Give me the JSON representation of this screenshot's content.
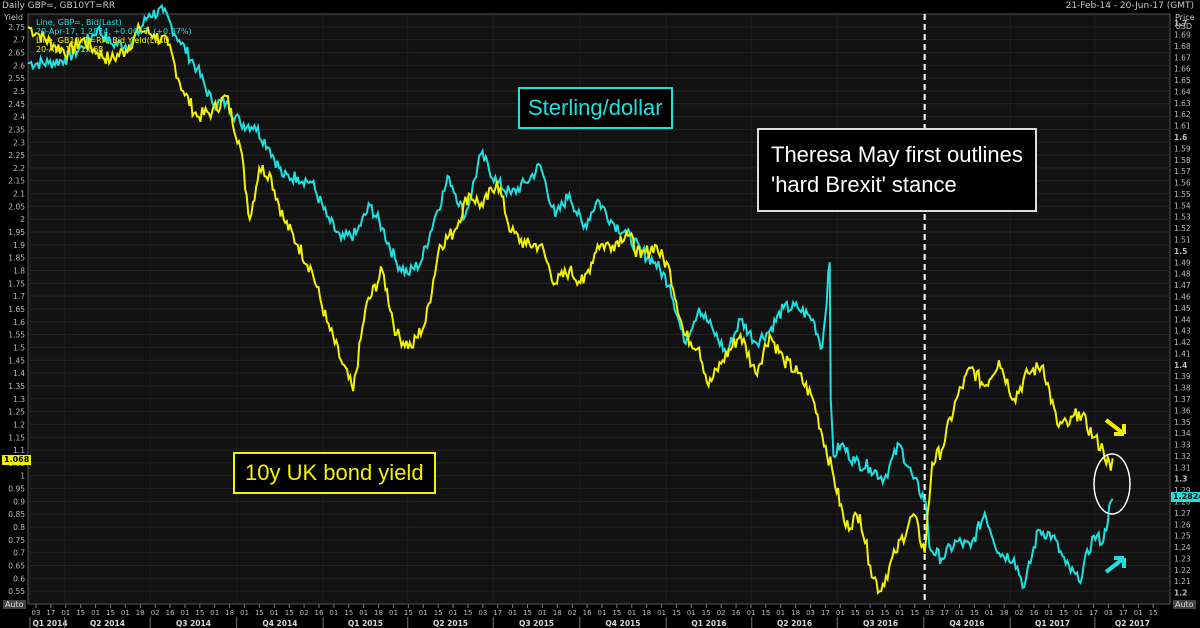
{
  "header": {
    "title": "Daily GBP=, GB10YT=RR",
    "range": "21-Feb-14 - 20-Jun-17 (GMT)"
  },
  "legend": [
    {
      "text": "Line, GBP=, Bid(Last)",
      "color": "#1fe0e0"
    },
    {
      "text": "20-Apr-17, 1.2824, +0.0047, (+0.37%)",
      "color": "#1fe0e0"
    },
    {
      "text": "Line, GB10YT=RR, Bid Yield(Last)",
      "color": "#f2f200"
    },
    {
      "text": "20-Apr-17, 1.068",
      "color": "#f2f200"
    }
  ],
  "axes": {
    "left_title": "Yield",
    "right_title_1": "Price",
    "right_title_2": "USD",
    "auto_left": "Auto",
    "auto_right": "Auto",
    "left_ticks": [
      "2.75",
      "2.7",
      "2.65",
      "2.6",
      "2.55",
      "2.5",
      "2.45",
      "2.4",
      "2.35",
      "2.3",
      "2.25",
      "2.2",
      "2.15",
      "2.1",
      "2.05",
      "2",
      "1.95",
      "1.9",
      "1.85",
      "1.8",
      "1.75",
      "1.7",
      "1.65",
      "1.6",
      "1.55",
      "1.5",
      "1.45",
      "1.4",
      "1.35",
      "1.3",
      "1.25",
      "1.2",
      "1.15",
      "1.1",
      "1.05",
      "1",
      "0.95",
      "0.9",
      "0.85",
      "0.8",
      "0.75",
      "0.7",
      "0.65",
      "0.6",
      "0.55"
    ],
    "right_ticks": [
      "1.7",
      "1.69",
      "1.68",
      "1.67",
      "1.66",
      "1.65",
      "1.64",
      "1.63",
      "1.62",
      "1.61",
      "1.6",
      "1.59",
      "1.58",
      "1.57",
      "1.56",
      "1.55",
      "1.54",
      "1.53",
      "1.52",
      "1.51",
      "1.5",
      "1.49",
      "1.48",
      "1.47",
      "1.46",
      "1.45",
      "1.44",
      "1.43",
      "1.42",
      "1.41",
      "1.4",
      "1.39",
      "1.38",
      "1.37",
      "1.36",
      "1.35",
      "1.34",
      "1.33",
      "1.32",
      "1.31",
      "1.3",
      "1.29",
      "1.28",
      "1.27",
      "1.26",
      "1.25",
      "1.24",
      "1.23",
      "1.22",
      "1.21",
      "1.2"
    ],
    "x_day_labels": [
      "03",
      "17",
      "01",
      "15",
      "01",
      "15",
      "01",
      "18",
      "02",
      "16",
      "01",
      "15",
      "01",
      "18",
      "01",
      "15",
      "01",
      "15",
      "02",
      "16",
      "01",
      "15",
      "01",
      "18",
      "01",
      "15",
      "01",
      "15",
      "01",
      "15",
      "03",
      "17",
      "01",
      "15",
      "01",
      "18",
      "02",
      "16",
      "01",
      "15",
      "01",
      "18",
      "01",
      "15",
      "01",
      "15",
      "02",
      "16",
      "01",
      "15",
      "01",
      "18",
      "03",
      "17",
      "01",
      "15",
      "01",
      "15",
      "01",
      "15",
      "03",
      "17",
      "01",
      "15",
      "01",
      "18",
      "02",
      "16",
      "01",
      "15",
      "01",
      "17",
      "03",
      "17",
      "01",
      "15"
    ],
    "x_quarter_labels": [
      "Q1 2014",
      "Q2 2014",
      "Q3 2014",
      "Q4 2014",
      "Q1 2015",
      "Q2 2015",
      "Q3 2015",
      "Q4 2015",
      "Q1 2016",
      "Q2 2016",
      "Q3 2016",
      "Q4 2016",
      "Q1 2017",
      "Q2 2017"
    ]
  },
  "current_values": {
    "yield_chip": "1.068",
    "gbp_chip": "1.2824",
    "gbp_marker": "1.3"
  },
  "annotations": {
    "sterling": "Sterling/dollar",
    "yield": "10y UK bond yield",
    "event_line1": "Theresa May first outlines",
    "event_line2": "'hard Brexit' stance"
  },
  "colors": {
    "gbp": "#1fe0e0",
    "yield": "#f2f200",
    "background": "#000000",
    "grid": "#2a2a2a",
    "event_line": "#ffffff"
  },
  "chart_data": {
    "type": "line",
    "x_type": "date",
    "x_range": [
      "2014-02-21",
      "2017-06-20"
    ],
    "event_date": "2016-10-02",
    "series": [
      {
        "name": "Line, GBP=, Bid(Last)",
        "axis": "right",
        "ylim": [
          1.2,
          1.7
        ],
        "points": [
          [
            "2014-02-21",
            1.665
          ],
          [
            "2014-03-15",
            1.665
          ],
          [
            "2014-04-01",
            1.668
          ],
          [
            "2014-04-20",
            1.679
          ],
          [
            "2014-05-06",
            1.695
          ],
          [
            "2014-05-20",
            1.682
          ],
          [
            "2014-06-10",
            1.681
          ],
          [
            "2014-06-30",
            1.708
          ],
          [
            "2014-07-15",
            1.71
          ],
          [
            "2014-08-01",
            1.685
          ],
          [
            "2014-08-20",
            1.66
          ],
          [
            "2014-09-05",
            1.63
          ],
          [
            "2014-09-20",
            1.63
          ],
          [
            "2014-10-05",
            1.612
          ],
          [
            "2014-10-20",
            1.61
          ],
          [
            "2014-11-05",
            1.59
          ],
          [
            "2014-11-20",
            1.565
          ],
          [
            "2014-12-05",
            1.565
          ],
          [
            "2014-12-20",
            1.56
          ],
          [
            "2015-01-05",
            1.53
          ],
          [
            "2015-01-20",
            1.51
          ],
          [
            "2015-02-05",
            1.515
          ],
          [
            "2015-02-20",
            1.54
          ],
          [
            "2015-03-05",
            1.52
          ],
          [
            "2015-03-20",
            1.49
          ],
          [
            "2015-04-01",
            1.48
          ],
          [
            "2015-04-15",
            1.49
          ],
          [
            "2015-04-30",
            1.53
          ],
          [
            "2015-05-15",
            1.565
          ],
          [
            "2015-06-01",
            1.53
          ],
          [
            "2015-06-18",
            1.585
          ],
          [
            "2015-07-05",
            1.56
          ],
          [
            "2015-07-20",
            1.55
          ],
          [
            "2015-08-05",
            1.56
          ],
          [
            "2015-08-20",
            1.575
          ],
          [
            "2015-09-05",
            1.53
          ],
          [
            "2015-09-20",
            1.55
          ],
          [
            "2015-10-05",
            1.52
          ],
          [
            "2015-10-20",
            1.545
          ],
          [
            "2015-11-05",
            1.525
          ],
          [
            "2015-11-20",
            1.515
          ],
          [
            "2015-12-05",
            1.5
          ],
          [
            "2015-12-20",
            1.49
          ],
          [
            "2016-01-05",
            1.47
          ],
          [
            "2016-01-20",
            1.42
          ],
          [
            "2016-02-05",
            1.45
          ],
          [
            "2016-02-20",
            1.43
          ],
          [
            "2016-03-05",
            1.41
          ],
          [
            "2016-03-20",
            1.44
          ],
          [
            "2016-04-05",
            1.42
          ],
          [
            "2016-04-20",
            1.43
          ],
          [
            "2016-05-05",
            1.45
          ],
          [
            "2016-05-20",
            1.45
          ],
          [
            "2016-06-05",
            1.44
          ],
          [
            "2016-06-15",
            1.415
          ],
          [
            "2016-06-23",
            1.49
          ],
          [
            "2016-06-24",
            1.37
          ],
          [
            "2016-06-27",
            1.32
          ],
          [
            "2016-07-05",
            1.33
          ],
          [
            "2016-07-20",
            1.315
          ],
          [
            "2016-08-05",
            1.31
          ],
          [
            "2016-08-20",
            1.3
          ],
          [
            "2016-09-05",
            1.33
          ],
          [
            "2016-09-20",
            1.3
          ],
          [
            "2016-10-03",
            1.28
          ],
          [
            "2016-10-07",
            1.24
          ],
          [
            "2016-10-20",
            1.23
          ],
          [
            "2016-11-05",
            1.245
          ],
          [
            "2016-11-20",
            1.24
          ],
          [
            "2016-12-05",
            1.27
          ],
          [
            "2016-12-20",
            1.235
          ],
          [
            "2017-01-05",
            1.23
          ],
          [
            "2017-01-16",
            1.205
          ],
          [
            "2017-01-31",
            1.255
          ],
          [
            "2017-02-15",
            1.25
          ],
          [
            "2017-03-01",
            1.225
          ],
          [
            "2017-03-15",
            1.21
          ],
          [
            "2017-03-31",
            1.25
          ],
          [
            "2017-04-10",
            1.245
          ],
          [
            "2017-04-18",
            1.28
          ],
          [
            "2017-04-20",
            1.2824
          ]
        ]
      },
      {
        "name": "Line, GB10YT=RR, Bid Yield(Last)",
        "axis": "left",
        "ylim": [
          0.5,
          2.8
        ],
        "points": [
          [
            "2014-02-21",
            2.75
          ],
          [
            "2014-03-05",
            2.72
          ],
          [
            "2014-03-20",
            2.68
          ],
          [
            "2014-04-05",
            2.65
          ],
          [
            "2014-04-20",
            2.7
          ],
          [
            "2014-05-06",
            2.65
          ],
          [
            "2014-05-20",
            2.62
          ],
          [
            "2014-06-05",
            2.66
          ],
          [
            "2014-06-20",
            2.74
          ],
          [
            "2014-07-05",
            2.72
          ],
          [
            "2014-07-20",
            2.68
          ],
          [
            "2014-08-05",
            2.5
          ],
          [
            "2014-08-20",
            2.4
          ],
          [
            "2014-09-05",
            2.42
          ],
          [
            "2014-09-20",
            2.48
          ],
          [
            "2014-10-05",
            2.28
          ],
          [
            "2014-10-15",
            2.0
          ],
          [
            "2014-10-25",
            2.2
          ],
          [
            "2014-11-05",
            2.18
          ],
          [
            "2014-11-20",
            2.0
          ],
          [
            "2014-12-05",
            1.9
          ],
          [
            "2014-12-20",
            1.8
          ],
          [
            "2015-01-05",
            1.6
          ],
          [
            "2015-01-20",
            1.45
          ],
          [
            "2015-02-02",
            1.33
          ],
          [
            "2015-02-15",
            1.65
          ],
          [
            "2015-03-05",
            1.8
          ],
          [
            "2015-03-20",
            1.55
          ],
          [
            "2015-04-05",
            1.5
          ],
          [
            "2015-04-20",
            1.6
          ],
          [
            "2015-05-05",
            1.9
          ],
          [
            "2015-05-20",
            1.95
          ],
          [
            "2015-06-05",
            2.1
          ],
          [
            "2015-06-20",
            2.05
          ],
          [
            "2015-07-05",
            2.15
          ],
          [
            "2015-07-20",
            1.95
          ],
          [
            "2015-08-05",
            1.9
          ],
          [
            "2015-08-20",
            1.9
          ],
          [
            "2015-09-05",
            1.75
          ],
          [
            "2015-09-20",
            1.8
          ],
          [
            "2015-10-05",
            1.75
          ],
          [
            "2015-10-20",
            1.9
          ],
          [
            "2015-11-05",
            1.9
          ],
          [
            "2015-11-20",
            1.95
          ],
          [
            "2015-12-05",
            1.85
          ],
          [
            "2015-12-20",
            1.9
          ],
          [
            "2016-01-05",
            1.8
          ],
          [
            "2016-01-20",
            1.55
          ],
          [
            "2016-02-05",
            1.5
          ],
          [
            "2016-02-15",
            1.35
          ],
          [
            "2016-03-01",
            1.45
          ],
          [
            "2016-03-20",
            1.55
          ],
          [
            "2016-04-05",
            1.4
          ],
          [
            "2016-04-20",
            1.55
          ],
          [
            "2016-05-05",
            1.45
          ],
          [
            "2016-05-20",
            1.4
          ],
          [
            "2016-06-05",
            1.3
          ],
          [
            "2016-06-27",
            1.0
          ],
          [
            "2016-07-10",
            0.8
          ],
          [
            "2016-07-25",
            0.85
          ],
          [
            "2016-08-05",
            0.65
          ],
          [
            "2016-08-15",
            0.55
          ],
          [
            "2016-09-01",
            0.7
          ],
          [
            "2016-09-20",
            0.85
          ],
          [
            "2016-10-02",
            0.7
          ],
          [
            "2016-10-10",
            1.05
          ],
          [
            "2016-10-20",
            1.1
          ],
          [
            "2016-11-05",
            1.3
          ],
          [
            "2016-11-20",
            1.42
          ],
          [
            "2016-12-05",
            1.35
          ],
          [
            "2016-12-20",
            1.45
          ],
          [
            "2017-01-05",
            1.3
          ],
          [
            "2017-01-20",
            1.4
          ],
          [
            "2017-02-05",
            1.43
          ],
          [
            "2017-02-20",
            1.2
          ],
          [
            "2017-03-05",
            1.2
          ],
          [
            "2017-03-15",
            1.25
          ],
          [
            "2017-03-31",
            1.15
          ],
          [
            "2017-04-10",
            1.1
          ],
          [
            "2017-04-18",
            1.02
          ],
          [
            "2017-04-20",
            1.068
          ]
        ]
      }
    ]
  }
}
